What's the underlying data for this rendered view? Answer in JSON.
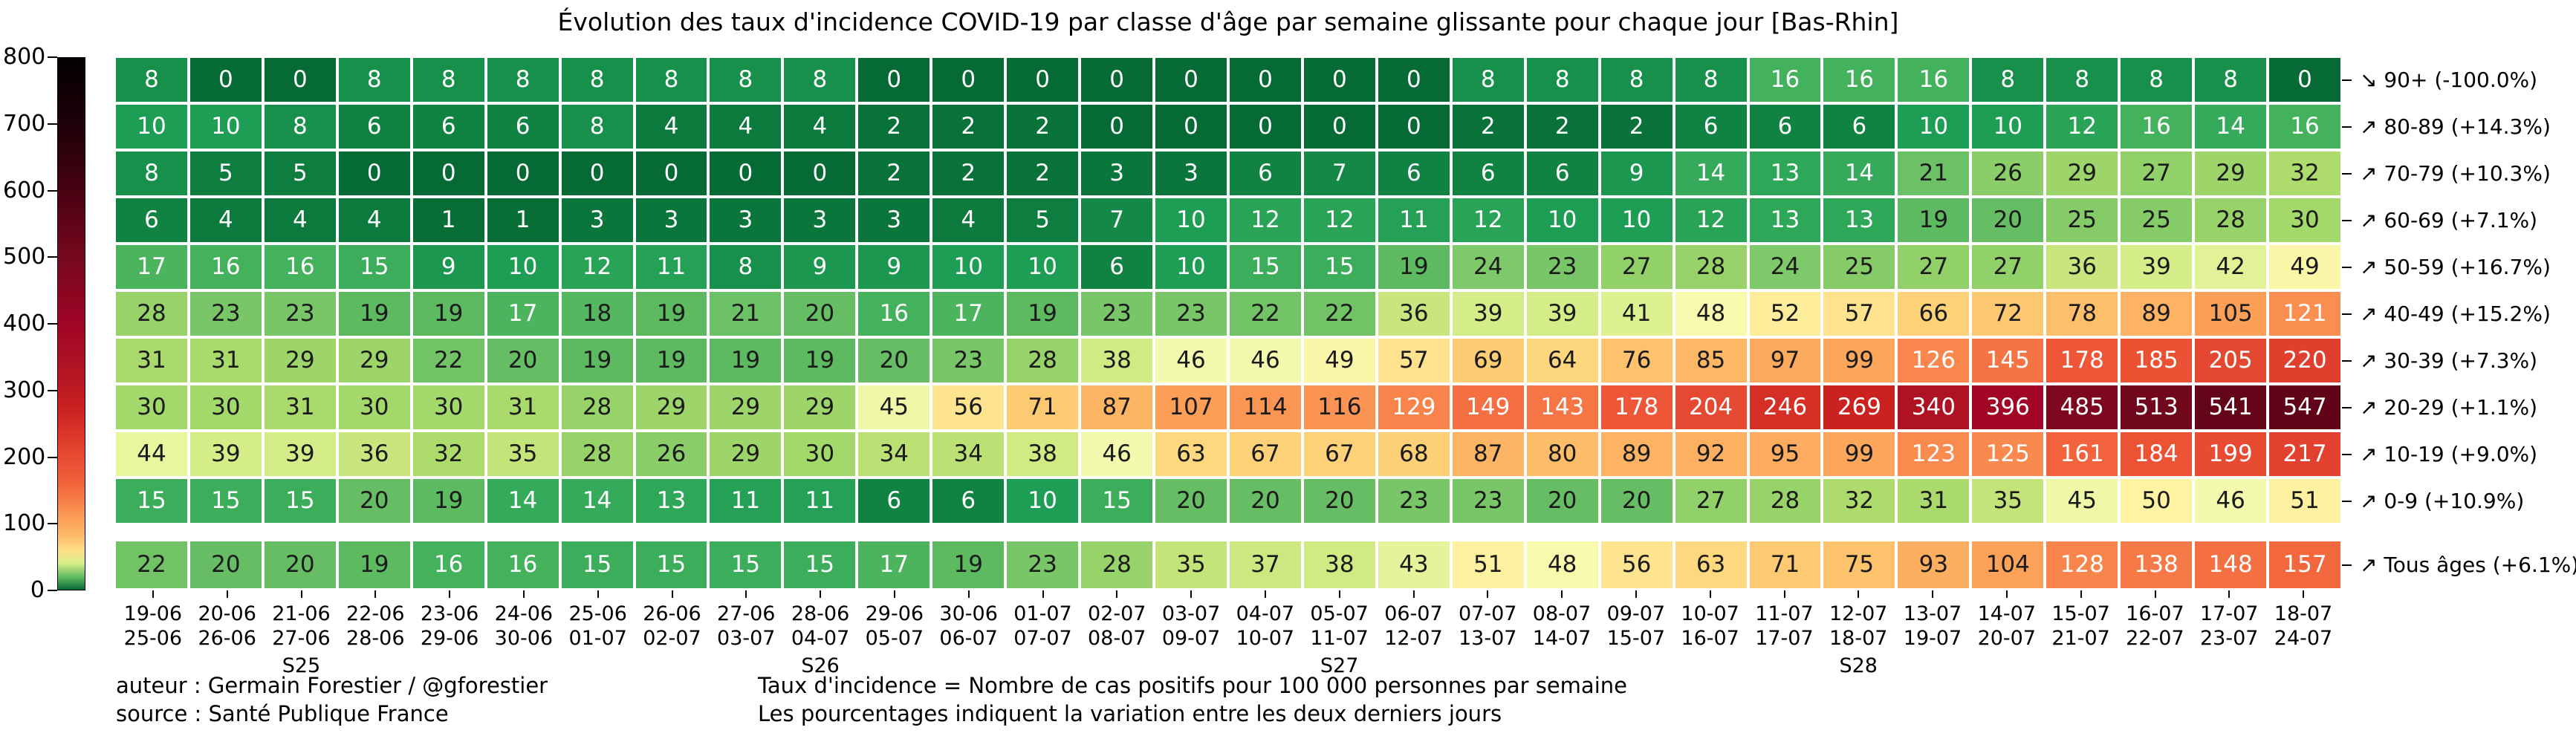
{
  "title": "Évolution des taux d'incidence COVID-19 par classe d'âge par semaine glissante pour chaque jour [Bas-Rhin]",
  "colorbar": {
    "tick_labels": [
      "800",
      "700",
      "600",
      "500",
      "400",
      "300",
      "200",
      "100",
      "0"
    ],
    "min": 0,
    "max": 800
  },
  "chart_data": {
    "type": "heatmap",
    "title": "Évolution des taux d'incidence COVID-19 par classe d'âge par semaine glissante pour chaque jour [Bas-Rhin]",
    "value_definition": "Taux d'incidence = Nombre de cas positifs pour 100 000 personnes par semaine",
    "x_labels_top": [
      "19-06",
      "20-06",
      "21-06",
      "22-06",
      "23-06",
      "24-06",
      "25-06",
      "26-06",
      "27-06",
      "28-06",
      "29-06",
      "30-06",
      "01-07",
      "02-07",
      "03-07",
      "04-07",
      "05-07",
      "06-07",
      "07-07",
      "08-07",
      "09-07",
      "10-07",
      "11-07",
      "12-07",
      "13-07",
      "14-07",
      "15-07",
      "16-07",
      "17-07",
      "18-07"
    ],
    "x_labels_bottom": [
      "25-06",
      "26-06",
      "27-06",
      "28-06",
      "29-06",
      "30-06",
      "01-07",
      "02-07",
      "03-07",
      "04-07",
      "05-07",
      "06-07",
      "07-07",
      "08-07",
      "09-07",
      "10-07",
      "11-07",
      "12-07",
      "13-07",
      "14-07",
      "15-07",
      "16-07",
      "17-07",
      "18-07",
      "19-07",
      "20-07",
      "21-07",
      "22-07",
      "23-07",
      "24-07"
    ],
    "week_labels": [
      "",
      "",
      "S25",
      "",
      "",
      "",
      "",
      "",
      "",
      "S26",
      "",
      "",
      "",
      "",
      "",
      "",
      "S27",
      "",
      "",
      "",
      "",
      "",
      "",
      "S28",
      "",
      "",
      "",
      "",
      "",
      ""
    ],
    "rows": [
      {
        "label": "90+",
        "arrow": "↘",
        "change": "(-100.0%)",
        "values": [
          8,
          0,
          0,
          8,
          8,
          8,
          8,
          8,
          8,
          8,
          0,
          0,
          0,
          0,
          0,
          0,
          0,
          0,
          8,
          8,
          8,
          8,
          16,
          16,
          16,
          8,
          8,
          8,
          8,
          0
        ]
      },
      {
        "label": "80-89",
        "arrow": "↗",
        "change": "(+14.3%)",
        "values": [
          10,
          10,
          8,
          6,
          6,
          6,
          8,
          4,
          4,
          4,
          2,
          2,
          2,
          0,
          0,
          0,
          0,
          0,
          2,
          2,
          2,
          6,
          6,
          6,
          10,
          10,
          12,
          16,
          14,
          16
        ]
      },
      {
        "label": "70-79",
        "arrow": "↗",
        "change": "(+10.3%)",
        "values": [
          8,
          5,
          5,
          0,
          0,
          0,
          0,
          0,
          0,
          0,
          2,
          2,
          2,
          3,
          3,
          6,
          7,
          6,
          6,
          6,
          9,
          14,
          13,
          14,
          21,
          26,
          29,
          27,
          29,
          32
        ]
      },
      {
        "label": "60-69",
        "arrow": "↗",
        "change": "(+7.1%)",
        "values": [
          6,
          4,
          4,
          4,
          1,
          1,
          3,
          3,
          3,
          3,
          3,
          4,
          5,
          7,
          10,
          12,
          12,
          11,
          12,
          10,
          10,
          12,
          13,
          13,
          19,
          20,
          25,
          25,
          28,
          30
        ]
      },
      {
        "label": "50-59",
        "arrow": "↗",
        "change": "(+16.7%)",
        "values": [
          17,
          16,
          16,
          15,
          9,
          10,
          12,
          11,
          8,
          9,
          9,
          10,
          10,
          6,
          10,
          15,
          15,
          19,
          24,
          23,
          27,
          28,
          24,
          25,
          27,
          27,
          36,
          39,
          42,
          49
        ]
      },
      {
        "label": "40-49",
        "arrow": "↗",
        "change": "(+15.2%)",
        "values": [
          28,
          23,
          23,
          19,
          19,
          17,
          18,
          19,
          21,
          20,
          16,
          17,
          19,
          23,
          23,
          22,
          22,
          36,
          39,
          39,
          41,
          48,
          52,
          57,
          66,
          72,
          78,
          89,
          105,
          121
        ]
      },
      {
        "label": "30-39",
        "arrow": "↗",
        "change": "(+7.3%)",
        "values": [
          31,
          31,
          29,
          29,
          22,
          20,
          19,
          19,
          19,
          19,
          20,
          23,
          28,
          38,
          46,
          46,
          49,
          57,
          69,
          64,
          76,
          85,
          97,
          99,
          126,
          145,
          178,
          185,
          205,
          220
        ]
      },
      {
        "label": "20-29",
        "arrow": "↗",
        "change": "(+1.1%)",
        "values": [
          30,
          30,
          31,
          30,
          30,
          31,
          28,
          29,
          29,
          29,
          45,
          56,
          71,
          87,
          107,
          114,
          116,
          129,
          149,
          143,
          178,
          204,
          246,
          269,
          340,
          396,
          485,
          513,
          541,
          547
        ]
      },
      {
        "label": "10-19",
        "arrow": "↗",
        "change": "(+9.0%)",
        "values": [
          44,
          39,
          39,
          36,
          32,
          35,
          28,
          26,
          29,
          30,
          34,
          34,
          38,
          46,
          63,
          67,
          67,
          68,
          87,
          80,
          89,
          92,
          95,
          99,
          123,
          125,
          161,
          184,
          199,
          217
        ]
      },
      {
        "label": "0-9",
        "arrow": "↗",
        "change": "(+10.9%)",
        "values": [
          15,
          15,
          15,
          20,
          19,
          14,
          14,
          13,
          11,
          11,
          6,
          6,
          10,
          15,
          20,
          20,
          20,
          23,
          23,
          20,
          20,
          27,
          28,
          32,
          31,
          35,
          45,
          50,
          46,
          51
        ]
      }
    ],
    "total_row": {
      "label": "Tous âges",
      "arrow": "↗",
      "change": "(+6.1%)",
      "values": [
        22,
        20,
        20,
        19,
        16,
        16,
        15,
        15,
        15,
        15,
        17,
        19,
        23,
        28,
        35,
        37,
        38,
        43,
        51,
        48,
        56,
        63,
        71,
        75,
        93,
        104,
        128,
        138,
        148,
        157
      ]
    },
    "color_scale": [
      [
        0,
        "#066a34"
      ],
      [
        6,
        "#108242"
      ],
      [
        10,
        "#1e9e54"
      ],
      [
        14,
        "#34aa5a"
      ],
      [
        17,
        "#4cb45e"
      ],
      [
        20,
        "#66bd63"
      ],
      [
        24,
        "#7ec969"
      ],
      [
        28,
        "#98d369"
      ],
      [
        32,
        "#aedc6c"
      ],
      [
        36,
        "#c8e67d"
      ],
      [
        40,
        "#d9ef8b"
      ],
      [
        44,
        "#e9f6a0"
      ],
      [
        47,
        "#f7fcb4"
      ],
      [
        50,
        "#fef3a2"
      ],
      [
        56,
        "#fee48f"
      ],
      [
        63,
        "#fed87f"
      ],
      [
        70,
        "#fdcb72"
      ],
      [
        80,
        "#fdbc67"
      ],
      [
        92,
        "#fdb062"
      ],
      [
        105,
        "#fca057"
      ],
      [
        120,
        "#fa8e50"
      ],
      [
        140,
        "#f67846"
      ],
      [
        160,
        "#f2643d"
      ],
      [
        185,
        "#eb5234"
      ],
      [
        210,
        "#e44630"
      ],
      [
        240,
        "#d93228"
      ],
      [
        270,
        "#cb2120"
      ],
      [
        310,
        "#b81821"
      ],
      [
        350,
        "#aa1024"
      ],
      [
        400,
        "#a00526"
      ],
      [
        450,
        "#8a0620"
      ],
      [
        500,
        "#76081d"
      ],
      [
        550,
        "#600318"
      ],
      [
        620,
        "#3e0110"
      ],
      [
        700,
        "#1e0008"
      ],
      [
        800,
        "#030002"
      ]
    ],
    "text_color_rule": {
      "white_if_below_or_equal": 17,
      "white_if_above_or_equal": 119
    },
    "ylim": [
      0,
      800
    ],
    "legend_position": "left-colorbar"
  },
  "footer": {
    "author": "auteur : Germain Forestier / @gforestier",
    "source": "source : Santé Publique France",
    "note1": "Taux d'incidence = Nombre de cas positifs pour 100 000 personnes par semaine",
    "note2": "Les pourcentages indiquent la variation entre les deux derniers jours"
  }
}
